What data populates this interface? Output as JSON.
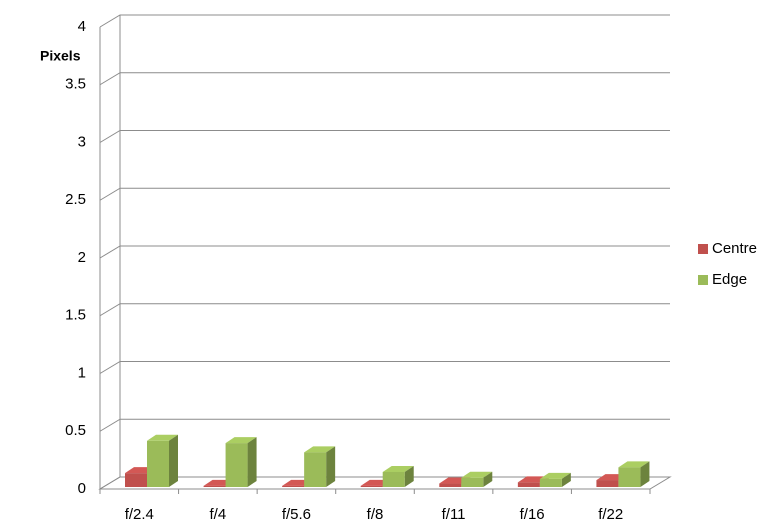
{
  "chart_data": {
    "type": "bar3d",
    "y_label": "Pixels",
    "categories": [
      "f/2.4",
      "f/4",
      "f/5.6",
      "f/8",
      "f/11",
      "f/16",
      "f/22"
    ],
    "series": [
      {
        "name": "Centre",
        "color": "#c0504d",
        "values": [
          0.12,
          0.01,
          0.01,
          0.01,
          0.03,
          0.04,
          0.06
        ]
      },
      {
        "name": "Edge",
        "color": "#9bbb59",
        "values": [
          0.4,
          0.38,
          0.3,
          0.13,
          0.08,
          0.07,
          0.17
        ]
      }
    ],
    "ylim": [
      0,
      4
    ],
    "yticks": [
      0,
      0.5,
      1,
      1.5,
      2,
      2.5,
      3,
      3.5,
      4
    ],
    "grid": true,
    "legend": "right"
  }
}
